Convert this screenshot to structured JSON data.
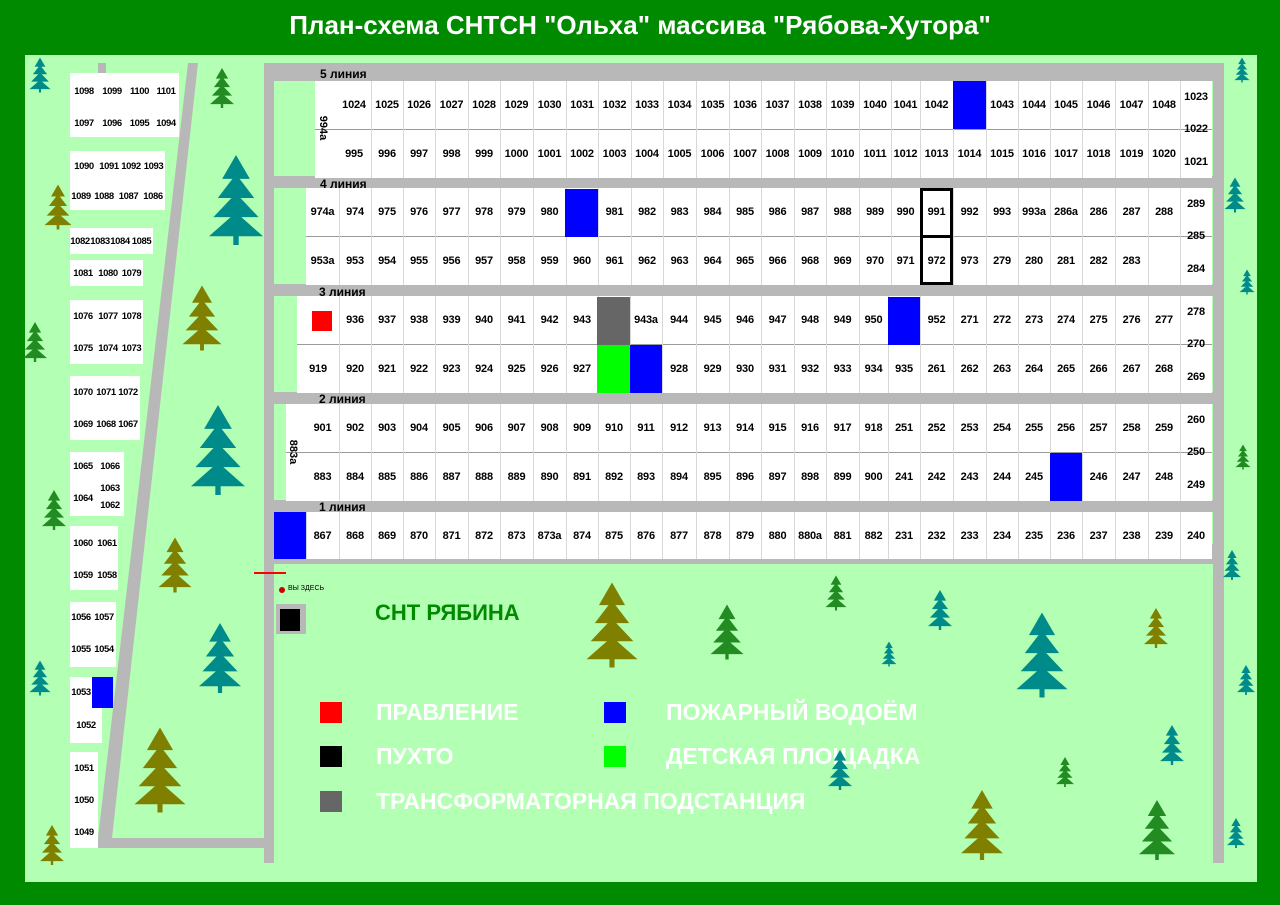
{
  "title": "План-схема СНТСН \"Ольха\" массива \"Рябова-Хутора\"",
  "neighbor_label": "СНТ РЯБИНА",
  "you_are_here": "ВЫ ЗДЕСЬ",
  "colors": {
    "board": "#ff0000",
    "trash": "#000000",
    "transformer": "#666666",
    "fire_pond": "#0000ff",
    "playground": "#00ff00",
    "background": "#008a00",
    "field": "#b3ffb3",
    "road": "#b8b8b8"
  },
  "legend": [
    {
      "key": "board",
      "label": "ПРАВЛЕНИЕ"
    },
    {
      "key": "trash",
      "label": "ПУХТО"
    },
    {
      "key": "transformer",
      "label": "ТРАНСФОРМАТОРНАЯ ПОДСТАНЦИЯ"
    },
    {
      "key": "fire_pond",
      "label": "ПОЖАРНЫЙ ВОДОЁМ"
    },
    {
      "key": "playground",
      "label": "ДЕТСКАЯ ПЛОЩАДКА"
    }
  ],
  "lines": {
    "line5": {
      "label": "5  линия",
      "side_label": "994а",
      "top": [
        "1024",
        "1025",
        "1026",
        "1027",
        "1028",
        "1029",
        "1030",
        "1031",
        "1032",
        "1033",
        "1034",
        "1035",
        "1036",
        "1037",
        "1038",
        "1039",
        "1040",
        "1041",
        "1042",
        "",
        "1043",
        "1044",
        "1045",
        "1046",
        "1047",
        "1048"
      ],
      "bottom": [
        "995",
        "996",
        "997",
        "998",
        "999",
        "1000",
        "1001",
        "1002",
        "1003",
        "1004",
        "1005",
        "1006",
        "1007",
        "1008",
        "1009",
        "1010",
        "1011",
        "1012",
        "1013",
        "1014",
        "1015",
        "1016",
        "1017",
        "1018",
        "1019",
        "1020"
      ],
      "right": [
        "1023",
        "1022",
        "1021"
      ]
    },
    "line4": {
      "label": "4  линия",
      "top": [
        "974а",
        "974",
        "975",
        "976",
        "977",
        "978",
        "979",
        "980",
        "",
        "981",
        "982",
        "983",
        "984",
        "985",
        "986",
        "987",
        "988",
        "989",
        "990",
        "991",
        "992",
        "993",
        "993а",
        "286а",
        "286",
        "287",
        "288"
      ],
      "bottom": [
        "953а",
        "953",
        "954",
        "955",
        "956",
        "957",
        "958",
        "959",
        "960",
        "961",
        "962",
        "963",
        "964",
        "965",
        "966",
        "968",
        "969",
        "970",
        "971",
        "972",
        "973",
        "279",
        "280",
        "281",
        "282",
        "283"
      ],
      "right": [
        "289",
        "285",
        "284"
      ]
    },
    "line3": {
      "label": "3  линия",
      "top": [
        "",
        "936",
        "937",
        "938",
        "939",
        "940",
        "941",
        "942",
        "943",
        "",
        "943а",
        "944",
        "945",
        "946",
        "947",
        "948",
        "949",
        "950",
        "",
        "952",
        "271",
        "272",
        "273",
        "274",
        "275",
        "276",
        "277"
      ],
      "bottom": [
        "919",
        "920",
        "921",
        "922",
        "923",
        "924",
        "925",
        "926",
        "927",
        "",
        "",
        "928",
        "929",
        "930",
        "931",
        "932",
        "933",
        "934",
        "935",
        "261",
        "262",
        "263",
        "264",
        "265",
        "266",
        "267",
        "268"
      ],
      "right": [
        "278",
        "270",
        "269"
      ]
    },
    "line2": {
      "label": "2  линия",
      "side_label": "883а",
      "top": [
        "901",
        "902",
        "903",
        "904",
        "905",
        "906",
        "907",
        "908",
        "909",
        "910",
        "911",
        "912",
        "913",
        "914",
        "915",
        "916",
        "917",
        "918",
        "251",
        "252",
        "253",
        "254",
        "255",
        "256",
        "257",
        "258",
        "259"
      ],
      "bottom": [
        "883",
        "884",
        "885",
        "886",
        "887",
        "888",
        "889",
        "890",
        "891",
        "892",
        "893",
        "894",
        "895",
        "896",
        "897",
        "898",
        "899",
        "900",
        "241",
        "242",
        "243",
        "244",
        "245",
        "",
        "246",
        "247",
        "248"
      ],
      "right": [
        "260",
        "250",
        "249"
      ]
    },
    "line1": {
      "label": "1  линия",
      "top": [
        "",
        "867",
        "868",
        "869",
        "870",
        "871",
        "872",
        "873",
        "873а",
        "874",
        "875",
        "876",
        "877",
        "878",
        "879",
        "880",
        "880а",
        "881",
        "882",
        "231",
        "232",
        "233",
        "234",
        "235",
        "236",
        "237",
        "238",
        "239"
      ],
      "right": [
        "240"
      ]
    }
  },
  "left_column": [
    [
      "1098",
      "1099",
      "1100",
      "1101"
    ],
    [
      "1097",
      "1096",
      "1095",
      "1094"
    ],
    [
      "1090",
      "1091",
      "1092",
      "1093"
    ],
    [
      "1089",
      "1088",
      "1087",
      "1086"
    ],
    [
      "1082",
      "1083",
      "1084",
      "1085"
    ],
    [
      "1081",
      "1080",
      "1079"
    ],
    [
      "1076",
      "1077",
      "1078"
    ],
    [
      "1075",
      "1074",
      "1073"
    ],
    [
      "1070",
      "1071",
      "1072"
    ],
    [
      "1069",
      "1068",
      "1067"
    ],
    [
      "1065",
      "1066"
    ],
    [
      "1064",
      "1063",
      "1062"
    ],
    [
      "1060",
      "1061"
    ],
    [
      "1059",
      "1058"
    ],
    [
      "1056",
      "1057"
    ],
    [
      "1055",
      "1054"
    ],
    [
      "1053"
    ],
    [
      "1052"
    ],
    [
      "1051"
    ],
    [
      "1050"
    ],
    [
      "1049"
    ]
  ]
}
